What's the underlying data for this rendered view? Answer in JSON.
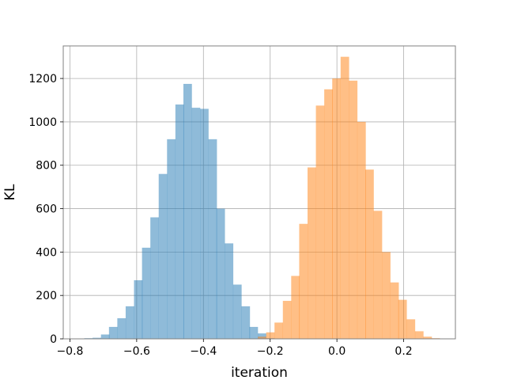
{
  "chart_data": {
    "type": "histogram",
    "title": "",
    "xlabel": "iteration",
    "ylabel": "KL",
    "xlim": [
      -0.82,
      0.355
    ],
    "ylim": [
      0,
      1350
    ],
    "grid": true,
    "xticks": [
      -0.8,
      -0.6,
      -0.4,
      -0.2,
      0.0,
      0.2
    ],
    "xtick_labels": [
      "−0.8",
      "−0.6",
      "−0.4",
      "−0.2",
      "0.0",
      "0.2"
    ],
    "yticks": [
      0,
      200,
      400,
      600,
      800,
      1000,
      1200
    ],
    "ytick_labels": [
      "0",
      "200",
      "400",
      "600",
      "800",
      "1000",
      "1200"
    ],
    "series": [
      {
        "color": "#1f77b4",
        "alpha": 0.5,
        "bin_width": 0.0248,
        "bins_start": [
          -0.757,
          -0.732,
          -0.707,
          -0.683,
          -0.658,
          -0.633,
          -0.608,
          -0.584,
          -0.559,
          -0.534,
          -0.509,
          -0.484,
          -0.46,
          -0.435,
          -0.41,
          -0.385,
          -0.361,
          -0.336,
          -0.311,
          -0.286,
          -0.262,
          -0.237,
          -0.212
        ],
        "values": [
          3,
          5,
          20,
          55,
          95,
          150,
          270,
          420,
          560,
          760,
          920,
          1080,
          1175,
          1065,
          1060,
          920,
          600,
          440,
          250,
          150,
          55,
          25,
          3
        ]
      },
      {
        "color": "#ff7f0e",
        "alpha": 0.5,
        "bin_width": 0.0248,
        "bins_start": [
          -0.237,
          -0.212,
          -0.187,
          -0.162,
          -0.137,
          -0.113,
          -0.088,
          -0.063,
          -0.038,
          -0.014,
          0.011,
          0.036,
          0.061,
          0.085,
          0.11,
          0.135,
          0.16,
          0.184,
          0.209,
          0.234,
          0.259,
          0.283
        ],
        "values": [
          10,
          30,
          75,
          175,
          290,
          530,
          790,
          1075,
          1150,
          1200,
          1300,
          1190,
          1000,
          780,
          590,
          400,
          260,
          180,
          90,
          35,
          10,
          3
        ]
      }
    ]
  }
}
